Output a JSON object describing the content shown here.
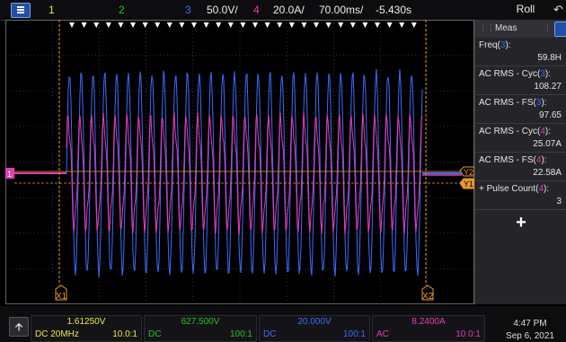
{
  "topbar": {
    "ch1": "1",
    "ch2": "2",
    "ch3": "3",
    "ch3_scale": "50.0V/",
    "ch4": "4",
    "ch4_scale": "20.0A/",
    "timebase": "70.00ms/",
    "delay": "-5.430s",
    "mode": "Roll"
  },
  "colors": {
    "ch1": "#e8e83a",
    "ch2": "#22c422",
    "ch3": "#3b6cff",
    "ch4": "#e83ab4",
    "cursor": "#e89a2a",
    "grid": "#555555"
  },
  "screen": {
    "ch1_marker": "1",
    "cursor_x1": "X1",
    "cursor_x2": "X2",
    "cursor_y1": "Y1",
    "cursor_y2": "Y2"
  },
  "meas": {
    "title": "Meas",
    "items": [
      {
        "label": "Freq(",
        "ch": "3",
        "close": "):",
        "value": "59.8H"
      },
      {
        "label": "AC RMS - Cyc(",
        "ch": "3",
        "close": "):",
        "value": "108.27"
      },
      {
        "label": "AC RMS - FS(",
        "ch": "3",
        "close": "):",
        "value": "97.65"
      },
      {
        "label": "AC RMS - Cyc(",
        "ch": "4",
        "close": "):",
        "value": "25.07A"
      },
      {
        "label": "AC RMS - FS(",
        "ch": "4",
        "close": "):",
        "value": "22.58A"
      },
      {
        "label": "+ Pulse Count(",
        "ch": "4",
        "close": "):",
        "value": "3"
      }
    ],
    "add_label": "+"
  },
  "bottom": {
    "ch1": {
      "scale": "1.61250V",
      "coupling": "DC 20MHz",
      "ratio": "10.0:1"
    },
    "ch2": {
      "scale": "627.500V",
      "coupling": "DC",
      "ratio": "100:1"
    },
    "ch3": {
      "scale": "20.000V",
      "coupling": "DC",
      "ratio": "100:1"
    },
    "ch4": {
      "scale": "8.2400A",
      "coupling": "AC",
      "ratio": "10.0:1"
    },
    "time": "4:47 PM",
    "date": "Sep 6, 2021"
  }
}
